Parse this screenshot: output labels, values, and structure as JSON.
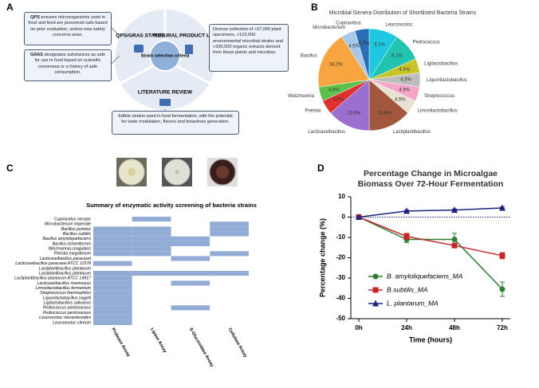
{
  "panel_labels": [
    "A",
    "B",
    "C",
    "D"
  ],
  "diagram": {
    "qps_box": {
      "term": "QPS",
      "text": "ensures microorganisms used in food and feed are presumed safe based on prior evaluation, unless new safety concerns arise."
    },
    "gras_box": {
      "term": "GRAS",
      "text": "designates substances as safe for use in food based on scientific consensus or a history of safe consumption."
    },
    "library_box": "Diverse collection of >37,000 plant specimens, >123,000 environmental microbial strains and >330,000 organic extracts derived from these plants and microbes.",
    "literature_box": "Edible strains used in food fermentation, with the potential for taste modulation, flavors and bioactives generation.",
    "segments": [
      "QPS/GRAS STATUS",
      "NATURAL PRODUCT LIBRARY",
      "LITERATURE REVIEW"
    ],
    "center": "Strain selection criteria"
  },
  "chart_data": [
    {
      "type": "pie",
      "title": "Microbial Genera Distribution of Shortlisted Bacteria Strains",
      "categories": [
        "Leuconostoc",
        "Pediococcus",
        "Ligilactobacillus",
        "Liquorilactobacillus",
        "Streptococcus",
        "Limosilactobacillus",
        "Lactiplantibacillus",
        "Lacticaseibacillus",
        "Priestia",
        "Weizmannia",
        "Bacillus",
        "Microbacterium",
        "Cupriavidus"
      ],
      "values": [
        9.1,
        9.1,
        4.5,
        4.5,
        4.5,
        4.5,
        13.6,
        13.6,
        4.5,
        4.5,
        18.2,
        4.5,
        4.5
      ],
      "value_labels": [
        "9.1%",
        "9.1%",
        "4.5%",
        "4.5%",
        "4.5%",
        "4.5%",
        "13.6%",
        "13.6%",
        "4.5%",
        "4.5%",
        "18.2%",
        "4.5%",
        "4.5%"
      ],
      "colors": [
        "#1ec8e0",
        "#22c4b0",
        "#c8c42a",
        "#bdbdbd",
        "#f4a6c8",
        "#e9e2d2",
        "#a0573c",
        "#9b6fcf",
        "#e03030",
        "#5cc14a",
        "#f7a540",
        "#a8c8e8",
        "#2a6eb6"
      ]
    },
    {
      "type": "heatmap",
      "title": "Summary of enzymatic activity screening of bacteria strains",
      "columns": [
        "Protease Assay",
        "Lipase Assay",
        "ß-Glucosidase Assay",
        "Cellulase Assay"
      ],
      "rows": [
        "Cupriavidus necator",
        "Microbacterium imperiale",
        "Bacillus pumilus",
        "Bacillus subtilis",
        "Bacillus amyloliquefaciens",
        "Bacillus licheniformis",
        "Weizmannia coagulans",
        "Priestia megaterium",
        "Lacticaseibacillus paracasei",
        "Lacticaseibacillus paracasei ATCC 11578",
        "Lactiplantibacillus plantarum",
        "Lactiplantibacillus plantarum",
        "Lactiplantibacillus plantarum ATCC 14917",
        "Lacticaseibacillus rhamnosus",
        "Limosilactobacillus fermentum",
        "Streptococcus thermophilus",
        "Liquorilactobacillus nagelii",
        "Ligilactobacillus salivarius",
        "Pediococcus pentosaceus",
        "Pediococcus pentosaceus",
        "Leuconostoc mesenteroides",
        "Leuconostoc citreum"
      ],
      "values": [
        [
          0,
          1,
          0,
          0
        ],
        [
          0,
          0,
          0,
          1
        ],
        [
          1,
          1,
          0,
          1
        ],
        [
          1,
          1,
          0,
          1
        ],
        [
          1,
          1,
          1,
          0
        ],
        [
          1,
          1,
          1,
          0
        ],
        [
          1,
          1,
          0,
          0
        ],
        [
          1,
          1,
          0,
          1
        ],
        [
          0,
          0,
          1,
          0
        ],
        [
          1,
          0,
          0,
          0
        ],
        [
          0,
          0,
          0,
          0
        ],
        [
          1,
          1,
          1,
          1
        ],
        [
          1,
          0,
          0,
          0
        ],
        [
          1,
          0,
          1,
          0
        ],
        [
          1,
          0,
          0,
          0
        ],
        [
          1,
          0,
          0,
          0
        ],
        [
          1,
          0,
          0,
          0
        ],
        [
          1,
          0,
          0,
          0
        ],
        [
          1,
          0,
          1,
          0
        ],
        [
          1,
          0,
          0,
          0
        ],
        [
          1,
          0,
          0,
          0
        ],
        [
          1,
          0,
          0,
          0
        ]
      ],
      "color": "#93acd6"
    },
    {
      "type": "line",
      "title": "Percentage Change in Microalgae Biomass Over 72-Hour Fermentation",
      "x_label": "Time (hours)",
      "y_label": "Percentage change (%)",
      "categories": [
        "0h",
        "24h",
        "48h",
        "72h"
      ],
      "ylim": [
        -50,
        10
      ],
      "yticks": [
        10,
        0,
        -10,
        -20,
        -30,
        -40,
        -50
      ],
      "series": [
        {
          "name": "B. amyloliquefaciens_MA",
          "color": "#2e7d32",
          "marker": "circle",
          "values": [
            0,
            -11,
            -11,
            -35.5
          ],
          "errors": [
            0,
            1.5,
            3,
            3.5
          ]
        },
        {
          "name": "B.subtilis_MA",
          "color": "#c62828",
          "marker": "square",
          "values": [
            0,
            -9.5,
            -14,
            -19
          ],
          "errors": [
            0,
            1.5,
            1,
            1.5
          ]
        },
        {
          "name": "L. plantarum_MA",
          "color": "#1a237e",
          "marker": "triangle",
          "values": [
            0,
            3,
            3.5,
            4.5
          ],
          "errors": [
            0,
            0.5,
            0.5,
            0.5
          ]
        }
      ]
    }
  ]
}
